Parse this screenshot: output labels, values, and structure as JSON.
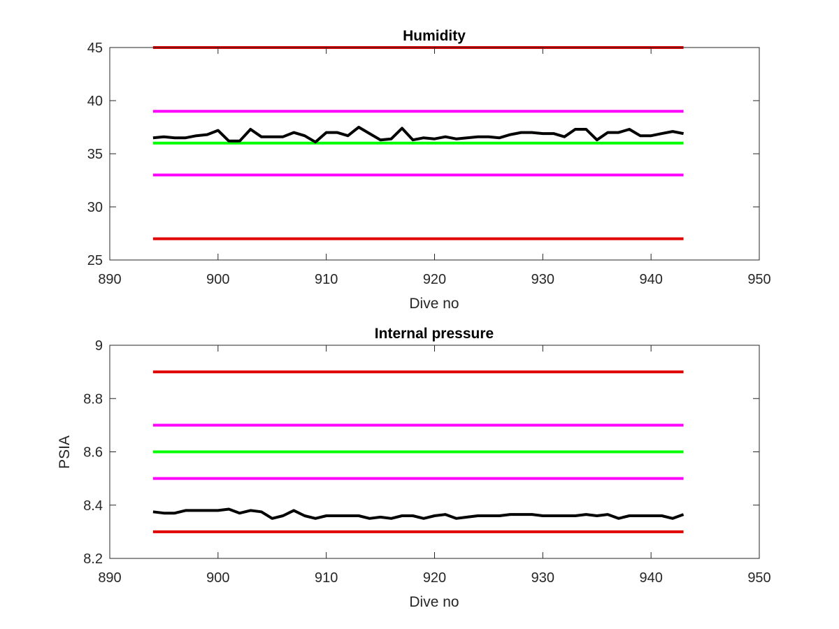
{
  "chart_data": [
    {
      "type": "line",
      "title": "Humidity",
      "xlabel": "Dive no",
      "ylabel": "",
      "xlim": [
        890,
        950
      ],
      "ylim": [
        25,
        45
      ],
      "xticks": [
        "890",
        "900",
        "910",
        "920",
        "930",
        "940",
        "950"
      ],
      "yticks": [
        "25",
        "30",
        "35",
        "40",
        "45"
      ],
      "grid": false,
      "series": [
        {
          "color": "#e00000",
          "x": [
            894,
            943
          ],
          "values": [
            45,
            45
          ]
        },
        {
          "color": "#ff00ff",
          "x": [
            894,
            943
          ],
          "values": [
            39,
            39
          ]
        },
        {
          "color": "#00ff00",
          "x": [
            894,
            943
          ],
          "values": [
            36,
            36
          ]
        },
        {
          "color": "#ff00ff",
          "x": [
            894,
            943
          ],
          "values": [
            33,
            33
          ]
        },
        {
          "color": "#e00000",
          "x": [
            894,
            943
          ],
          "values": [
            27,
            27
          ]
        },
        {
          "color": "#000000",
          "x": [
            894,
            895,
            896,
            897,
            898,
            899,
            900,
            901,
            902,
            903,
            904,
            905,
            906,
            907,
            908,
            909,
            910,
            911,
            912,
            913,
            914,
            915,
            916,
            917,
            918,
            919,
            920,
            921,
            922,
            923,
            924,
            925,
            926,
            927,
            928,
            929,
            930,
            931,
            932,
            933,
            934,
            935,
            936,
            937,
            938,
            939,
            940,
            941,
            942,
            943
          ],
          "values": [
            36.5,
            36.6,
            36.5,
            36.5,
            36.7,
            36.8,
            37.2,
            36.2,
            36.2,
            37.3,
            36.6,
            36.6,
            36.6,
            37.0,
            36.7,
            36.1,
            37.0,
            37.0,
            36.7,
            37.5,
            36.9,
            36.3,
            36.4,
            37.4,
            36.3,
            36.5,
            36.4,
            36.6,
            36.4,
            36.5,
            36.6,
            36.6,
            36.5,
            36.8,
            37.0,
            37.0,
            36.9,
            36.9,
            36.6,
            37.3,
            37.3,
            36.3,
            37.0,
            37.0,
            37.3,
            36.7,
            36.7,
            36.9,
            37.1,
            36.9
          ]
        }
      ]
    },
    {
      "type": "line",
      "title": "Internal pressure",
      "xlabel": "Dive no",
      "ylabel": "PSIA",
      "xlim": [
        890,
        950
      ],
      "ylim": [
        8.2,
        9
      ],
      "xticks": [
        "890",
        "900",
        "910",
        "920",
        "930",
        "940",
        "950"
      ],
      "yticks": [
        "8.2",
        "8.4",
        "8.6",
        "8.8",
        "9"
      ],
      "grid": false,
      "series": [
        {
          "color": "#e00000",
          "x": [
            894,
            943
          ],
          "values": [
            8.9,
            8.9
          ]
        },
        {
          "color": "#ff00ff",
          "x": [
            894,
            943
          ],
          "values": [
            8.7,
            8.7
          ]
        },
        {
          "color": "#00ff00",
          "x": [
            894,
            943
          ],
          "values": [
            8.6,
            8.6
          ]
        },
        {
          "color": "#ff00ff",
          "x": [
            894,
            943
          ],
          "values": [
            8.5,
            8.5
          ]
        },
        {
          "color": "#e00000",
          "x": [
            894,
            943
          ],
          "values": [
            8.3,
            8.3
          ]
        },
        {
          "color": "#000000",
          "x": [
            894,
            895,
            896,
            897,
            898,
            899,
            900,
            901,
            902,
            903,
            904,
            905,
            906,
            907,
            908,
            909,
            910,
            911,
            912,
            913,
            914,
            915,
            916,
            917,
            918,
            919,
            920,
            921,
            922,
            923,
            924,
            925,
            926,
            927,
            928,
            929,
            930,
            931,
            932,
            933,
            934,
            935,
            936,
            937,
            938,
            939,
            940,
            941,
            942,
            943
          ],
          "values": [
            8.375,
            8.37,
            8.37,
            8.38,
            8.38,
            8.38,
            8.38,
            8.385,
            8.37,
            8.38,
            8.375,
            8.35,
            8.36,
            8.38,
            8.36,
            8.35,
            8.36,
            8.36,
            8.36,
            8.36,
            8.35,
            8.355,
            8.35,
            8.36,
            8.36,
            8.35,
            8.36,
            8.365,
            8.35,
            8.355,
            8.36,
            8.36,
            8.36,
            8.365,
            8.365,
            8.365,
            8.36,
            8.36,
            8.36,
            8.36,
            8.365,
            8.36,
            8.365,
            8.35,
            8.36,
            8.36,
            8.36,
            8.36,
            8.35,
            8.365
          ]
        }
      ]
    }
  ]
}
